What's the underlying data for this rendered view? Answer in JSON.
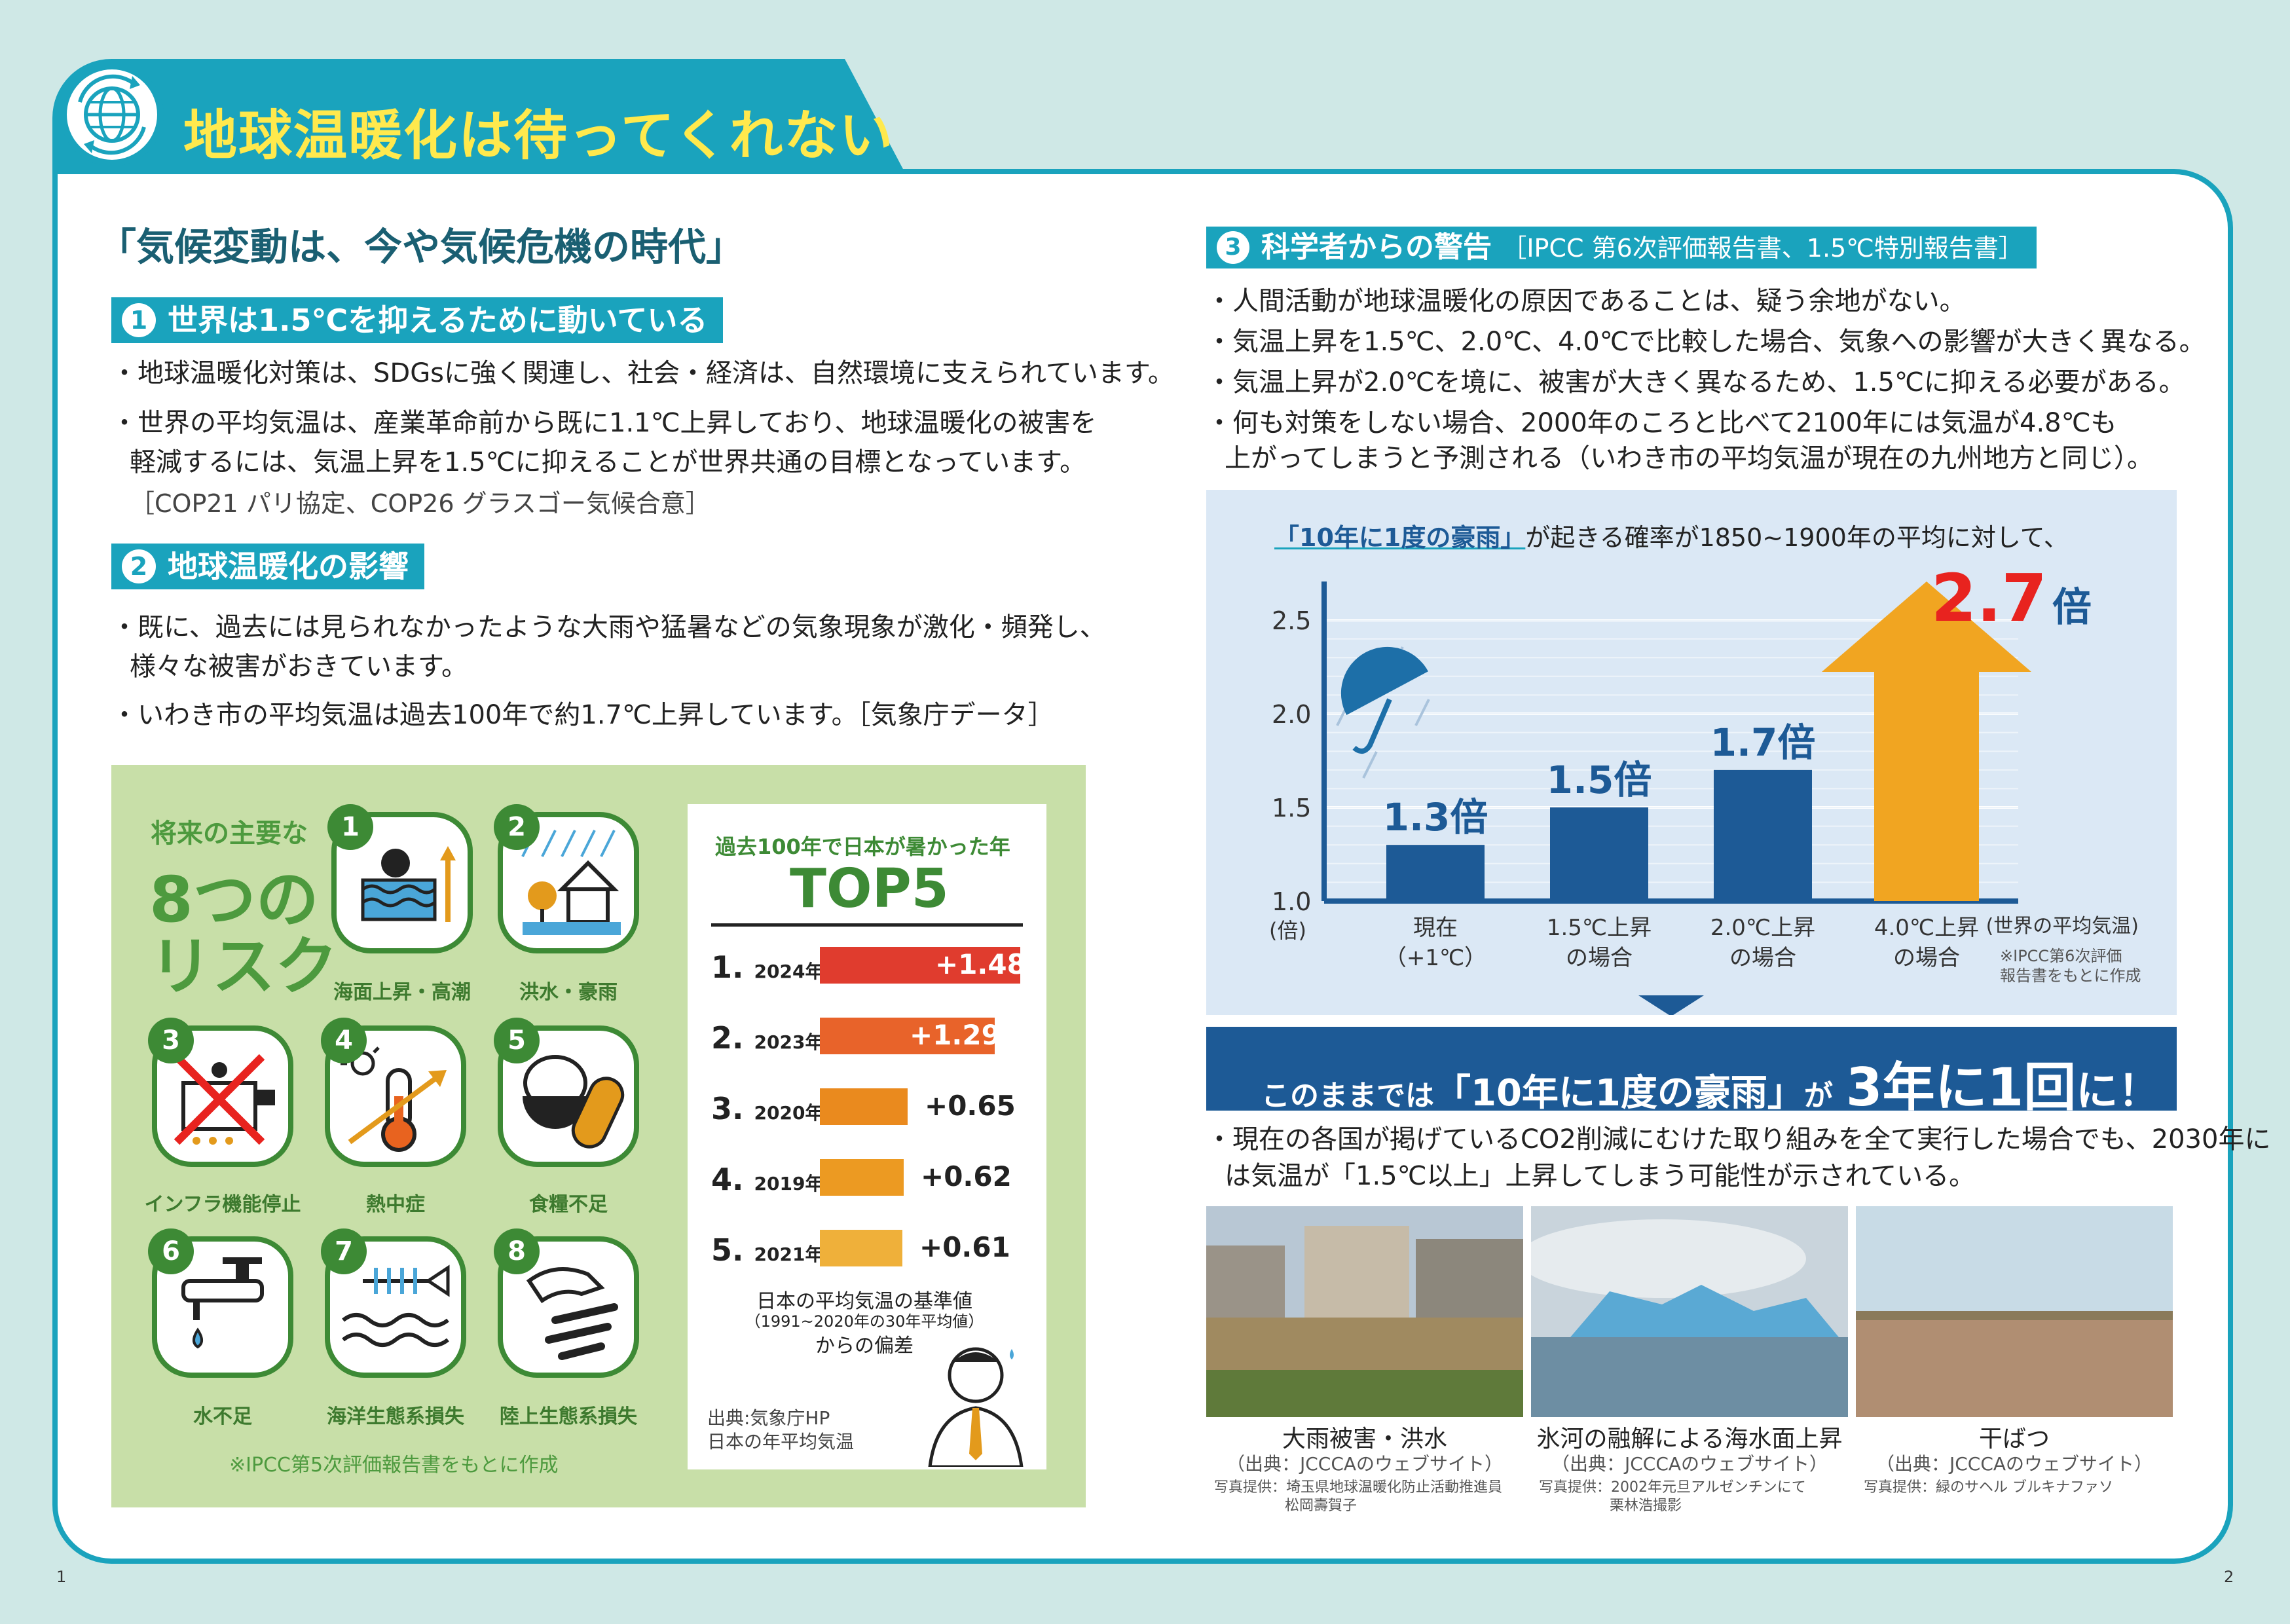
{
  "header": {
    "title": "地球温暖化は待ってくれない",
    "icon": "globe-recycle-icon"
  },
  "left": {
    "section_title": "「気候変動は、今や気候危機の時代」",
    "s1": {
      "num": "1",
      "title": "世界は1.5℃を抑えるために動いている",
      "bullets": [
        "・地球温暖化対策は、SDGsに強く関連し、社会・経済は、自然環境に支えられています。",
        "・世界の平均気温は、産業革命前から既に1.1℃上昇しており、地球温暖化の被害を",
        "軽減するには、気温上昇を1.5℃に抑えることが世界共通の目標となっています。"
      ],
      "note": "［COP21 パリ協定、COP26 グラスゴー気候合意］"
    },
    "s2": {
      "num": "2",
      "title": "地球温暖化の影響",
      "bullets": [
        "・既に、過去には見られなかったような大雨や猛暑などの気象現象が激化・頻発し、",
        "様々な被害がおきています。",
        "・いわき市の平均気温は過去100年で約1.7℃上昇しています。［気象庁データ］"
      ]
    },
    "risks": {
      "heading_small": "将来の主要な",
      "heading_big1": "8つの",
      "heading_big2": "リスク",
      "items": [
        {
          "num": "1",
          "label": "海面上昇・高潮",
          "icon": "sea-level-rise-icon"
        },
        {
          "num": "2",
          "label": "洪水・豪雨",
          "icon": "flood-house-icon"
        },
        {
          "num": "3",
          "label": "インフラ機能停止",
          "icon": "infrastructure-stop-icon"
        },
        {
          "num": "4",
          "label": "熱中症",
          "icon": "thermometer-sun-icon"
        },
        {
          "num": "5",
          "label": "食糧不足",
          "icon": "rice-bowl-icon"
        },
        {
          "num": "6",
          "label": "水不足",
          "icon": "faucet-icon"
        },
        {
          "num": "7",
          "label": "海洋生態系損失",
          "icon": "fish-bone-icon"
        },
        {
          "num": "8",
          "label": "陸上生態系損失",
          "icon": "dinosaur-fossil-icon"
        }
      ],
      "source_note": "※IPCC第5次評価報告書をもとに作成"
    },
    "top5": {
      "subtitle": "過去100年で日本が暑かった年",
      "title": "TOP5",
      "rows": [
        {
          "rank": "1",
          "year": "2024年",
          "value": "+1.48",
          "num": 1.48,
          "color": "#e03c2e"
        },
        {
          "rank": "2",
          "year": "2023年",
          "value": "+1.29",
          "num": 1.29,
          "color": "#e8632a"
        },
        {
          "rank": "3",
          "year": "2020年",
          "value": "+0.65",
          "num": 0.65,
          "color": "#ea8a1e"
        },
        {
          "rank": "4",
          "year": "2019年",
          "value": "+0.62",
          "num": 0.62,
          "color": "#ec9a22"
        },
        {
          "rank": "5",
          "year": "2021年",
          "value": "+0.61",
          "num": 0.61,
          "color": "#efb03a"
        }
      ],
      "caption1": "日本の平均気温の基準値",
      "caption2": "（1991~2020年の30年平均値）",
      "caption3": "からの偏差",
      "source1": "出典:気象庁HP",
      "source2": "日本の年平均気温"
    }
  },
  "right": {
    "s3": {
      "num": "3",
      "title": "科学者からの警告",
      "title_note": "［IPCC 第6次評価報告書、1.5℃特別報告書］",
      "bullets": [
        "・人間活動が地球温暖化の原因であることは、疑う余地がない。",
        "・気温上昇を1.5℃、2.0℃、4.0℃で比較した場合、気象への影響が大きく異なる。",
        "・気温上昇が2.0℃を境に、被害が大きく異なるため、1.5℃に抑える必要がある。",
        "・何も対策をしない場合、2000年のころと比べて2100年には気温が4.8℃も",
        "上がってしまうと予測される（いわき市の平均気温が現在の九州地方と同じ）。"
      ]
    },
    "chart_title_highlight": "「10年に1度の豪雨」",
    "chart_title_rest": "が起きる確率が1850~1900年の平均に対して、",
    "chart_data": {
      "type": "bar",
      "categories": [
        "現在（+1℃）",
        "1.5℃上昇の場合",
        "2.0℃上昇の場合",
        "4.0℃上昇の場合"
      ],
      "values": [
        1.3,
        1.5,
        1.7,
        2.7
      ],
      "value_labels": [
        "1.3倍",
        "1.5倍",
        "1.7倍",
        "2.7倍"
      ],
      "ylabel": "(倍)",
      "xlabel": "(世界の平均気温)",
      "yticks": [
        "1.0",
        "1.5",
        "2.0",
        "2.5"
      ],
      "ylim": [
        1.0,
        2.7
      ],
      "cat_lines": [
        [
          "現在",
          "（+1℃）"
        ],
        [
          "1.5℃上昇",
          "の場合"
        ],
        [
          "2.0℃上昇",
          "の場合"
        ],
        [
          "4.0℃上昇",
          "の場合"
        ]
      ],
      "big_value": "2.7",
      "big_unit": "倍",
      "note1": "※IPCC第6次評価",
      "note2": "報告書をもとに作成",
      "colors": {
        "bar": "#1d5a96",
        "arrow": "#f1a521",
        "highlight": "#e8231f"
      }
    },
    "banner": {
      "prefix": "このままでは",
      "quote": "「10年に1度の豪雨」",
      "ga": "が",
      "big": "3年に1回",
      "suffix": "に！"
    },
    "bottom_bullets": [
      "・現在の各国が掲げているCO2削減にむけた取り組みを全て実行した場合でも、2030年に",
      "は気温が「1.5℃以上」上昇してしまう可能性が示されている。"
    ],
    "photos": [
      {
        "caption": "大雨被害・洪水",
        "source": "（出典：JCCCAのウェブサイト）",
        "credit1": "写真提供：埼玉県地球温暖化防止活動推進員",
        "credit2": "松岡壽賀子"
      },
      {
        "caption": "氷河の融解による海水面上昇",
        "source": "（出典：JCCCAのウェブサイト）",
        "credit1": "写真提供：2002年元旦アルゼンチンにて",
        "credit2": "栗林浩撮影"
      },
      {
        "caption": "干ばつ",
        "source": "（出典：JCCCAのウェブサイト）",
        "credit1": "写真提供：緑のサヘル ブルキナファソ",
        "credit2": ""
      }
    ]
  },
  "page_numbers": {
    "left": "1",
    "right": "2"
  }
}
